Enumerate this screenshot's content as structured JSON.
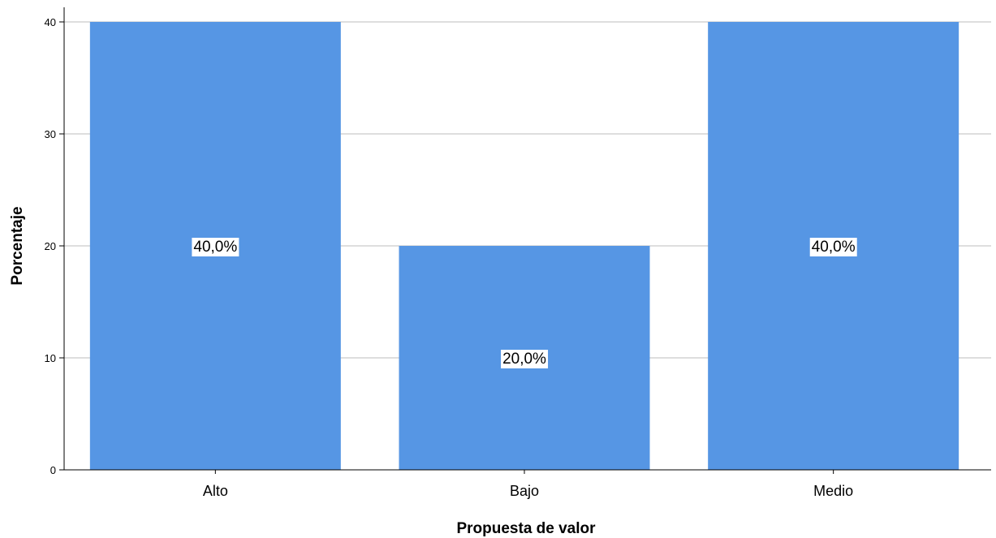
{
  "chart_data": {
    "type": "bar",
    "categories": [
      "Alto",
      "Bajo",
      "Medio"
    ],
    "values": [
      40,
      20,
      40
    ],
    "data_labels": [
      "40,0%",
      "20,0%",
      "40,0%"
    ],
    "xlabel": "Propuesta de valor",
    "ylabel": "Porcentaje",
    "ylim": [
      0,
      40
    ],
    "yticks": [
      "0",
      "10",
      "20",
      "30",
      "40"
    ],
    "grid": true,
    "bar_color": "#5696e4"
  }
}
